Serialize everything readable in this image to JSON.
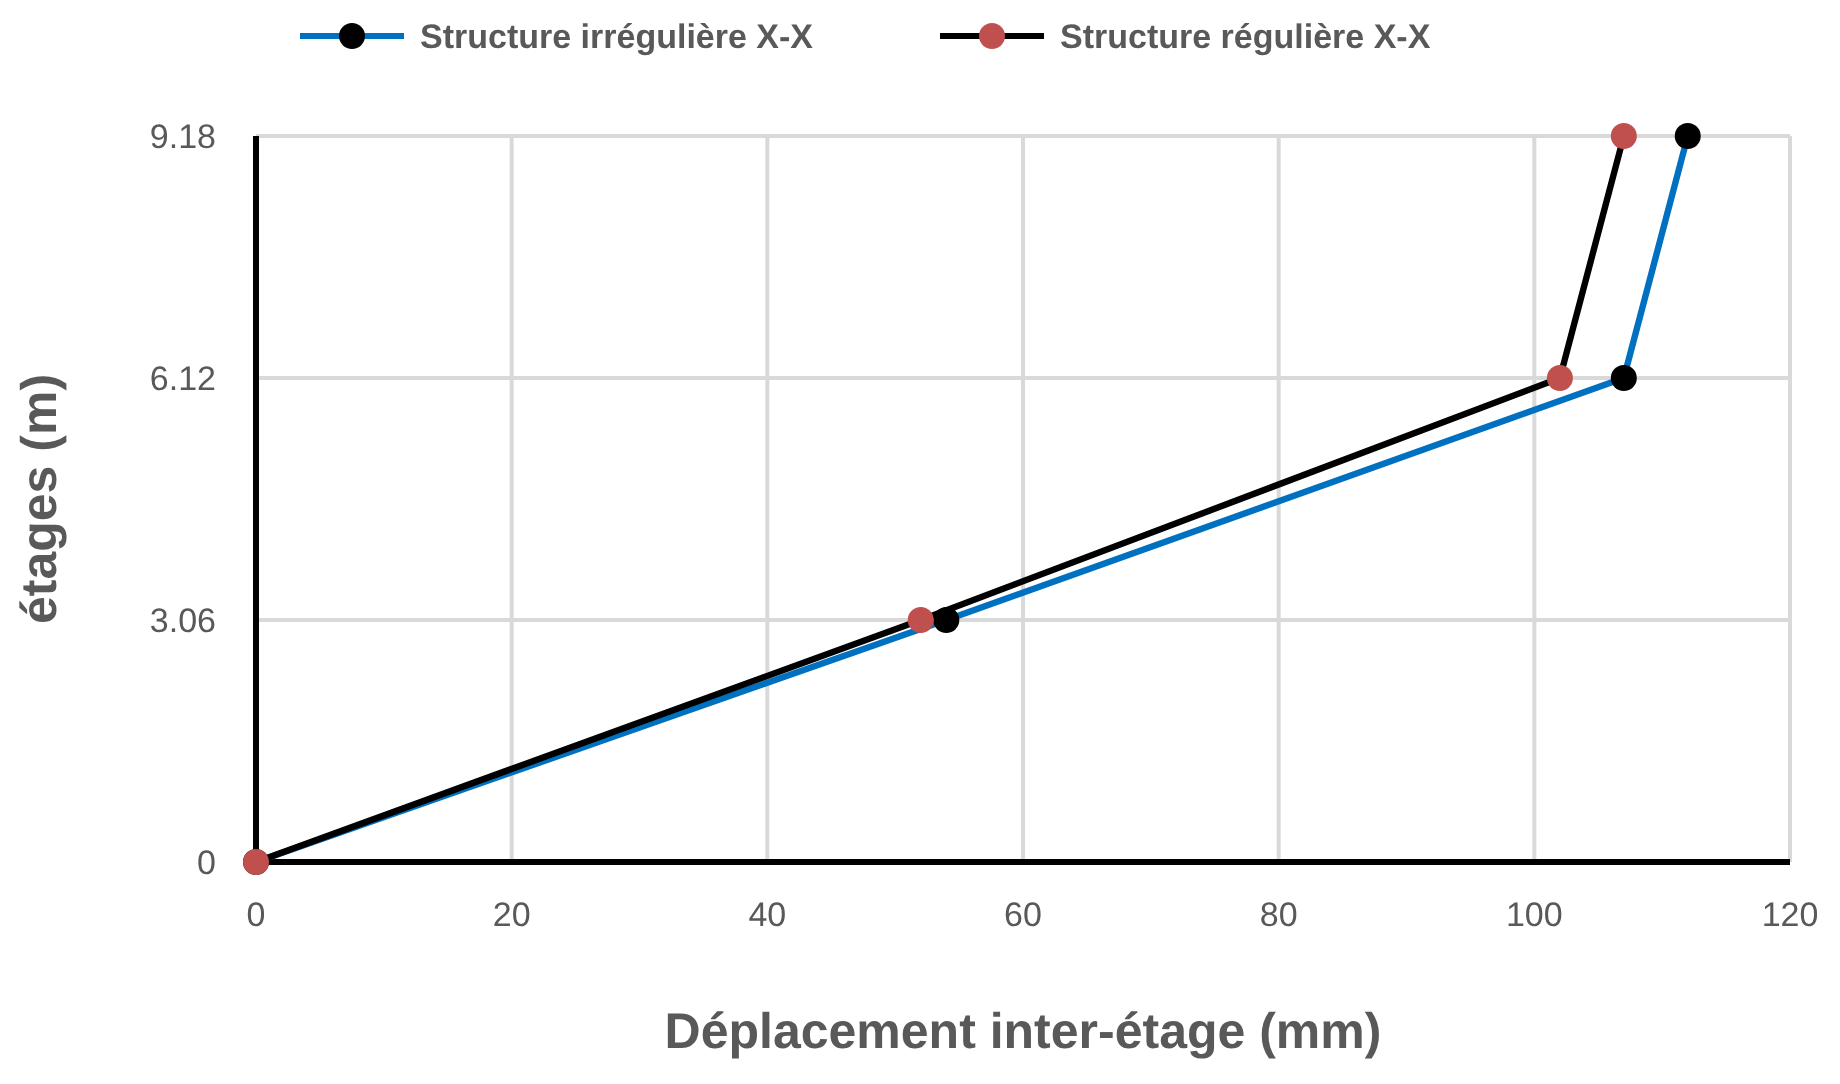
{
  "chart_data": {
    "type": "line",
    "xlabel": "Déplacement inter-étage (mm)",
    "ylabel": "étages (m)",
    "xlim": [
      0,
      120
    ],
    "xticks": [
      0,
      20,
      40,
      60,
      80,
      100,
      120
    ],
    "ylim": [
      0,
      9.18
    ],
    "yticks": [
      0,
      3.06,
      6.12,
      9.18
    ],
    "grid": true,
    "legend": "top",
    "marker": "circle",
    "line_style": "solid",
    "series": [
      {
        "name": "Structure irrégulière X-X",
        "color": "#0070c0",
        "colors": [
          "#000000",
          "#000000",
          "#000000",
          "#000000"
        ],
        "x": [
          0,
          54,
          107,
          112
        ],
        "values": [
          0,
          3.06,
          6.12,
          9.18
        ]
      },
      {
        "name": "Structure régulière X-X",
        "color": "#000000",
        "colors": [
          "#c0504d",
          "#c0504d",
          "#c0504d",
          "#c0504d"
        ],
        "x": [
          0,
          52,
          102,
          107
        ],
        "values": [
          0,
          3.06,
          6.12,
          9.18
        ]
      }
    ]
  }
}
